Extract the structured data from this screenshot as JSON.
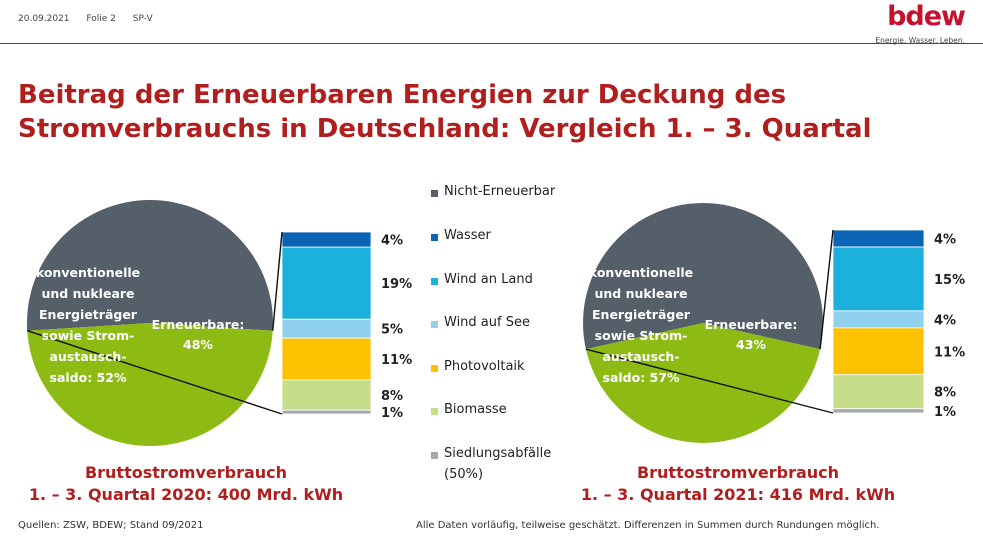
{
  "header": {
    "date": "20.09.2021",
    "slide": "Folie 2",
    "dept": "SP-V",
    "logo_text": "bdew",
    "logo_tagline": "Energie. Wasser. Leben."
  },
  "title_line1": "Beitrag der Erneuerbaren Energien zur Deckung des",
  "title_line2": "Stromverbrauchs in Deutschland: Vergleich 1. – 3. Quartal",
  "legend": [
    {
      "label": "Nicht-Erneuerbar",
      "color": "#555f69"
    },
    {
      "label": "Wasser",
      "color": "#0b63b4"
    },
    {
      "label": "Wind an Land",
      "color": "#1cb0dd"
    },
    {
      "label": "Wind auf See",
      "color": "#8fd1ee"
    },
    {
      "label": "Photovoltaik",
      "color": "#fcc200"
    },
    {
      "label": "Biomasse",
      "color": "#c6dd89"
    },
    {
      "label": "Siedlungsabfälle",
      "label2": "(50%)",
      "color": "#a5a9ae"
    }
  ],
  "chart_data": [
    {
      "type": "pie",
      "year": "2020",
      "slices": [
        {
          "name": "konventionelle und nukleare Energieträger sowie Strom-austausch-saldo",
          "value": 52
        },
        {
          "name": "Erneuerbare",
          "value": 48
        }
      ],
      "pie_labels": {
        "conventional": [
          "konventionelle",
          "und nukleare",
          "Energieträger",
          "sowie Strom-",
          "austausch-",
          "saldo: 52%"
        ],
        "renewable": [
          "Erneuerbare:",
          "48%"
        ]
      },
      "breakdown": [
        {
          "name": "Wasser",
          "value": 4,
          "label": "4%"
        },
        {
          "name": "Wind an Land",
          "value": 19,
          "label": "19%"
        },
        {
          "name": "Wind auf See",
          "value": 5,
          "label": "5%"
        },
        {
          "name": "Photovoltaik",
          "value": 11,
          "label": "11%"
        },
        {
          "name": "Biomasse",
          "value": 8,
          "label": "8%"
        },
        {
          "name": "Siedlungsabfälle",
          "value": 1,
          "label": "1%"
        }
      ],
      "caption_line1": "Bruttostromverbrauch",
      "caption_line2": "1. – 3. Quartal 2020: 400 Mrd. kWh"
    },
    {
      "type": "pie",
      "year": "2021",
      "slices": [
        {
          "name": "konventionelle und nukleare Energieträger sowie Strom-austausch-saldo",
          "value": 57
        },
        {
          "name": "Erneuerbare",
          "value": 43
        }
      ],
      "pie_labels": {
        "conventional": [
          "konventionelle",
          "und nukleare",
          "Energieträger",
          "sowie Strom-",
          "austausch-",
          "saldo: 57%"
        ],
        "renewable": [
          "Erneuerbare:",
          "43%"
        ]
      },
      "breakdown": [
        {
          "name": "Wasser",
          "value": 4,
          "label": "4%"
        },
        {
          "name": "Wind an Land",
          "value": 15,
          "label": "15%"
        },
        {
          "name": "Wind auf See",
          "value": 4,
          "label": "4%"
        },
        {
          "name": "Photovoltaik",
          "value": 11,
          "label": "11%"
        },
        {
          "name": "Biomasse",
          "value": 8,
          "label": "8%"
        },
        {
          "name": "Siedlungsabfälle",
          "value": 1,
          "label": "1%"
        }
      ],
      "caption_line1": "Bruttostromverbrauch",
      "caption_line2": "1. – 3. Quartal 2021: 416 Mrd. kWh"
    }
  ],
  "colors": {
    "conventional": "#555f69",
    "renewable": "#8dbb14",
    "accent": "#b01e1e"
  },
  "footer": {
    "source": "Quellen: ZSW, BDEW; Stand 09/2021",
    "note": "Alle Daten vorläufig, teilweise geschätzt. Differenzen in Summen durch Rundungen möglich."
  }
}
